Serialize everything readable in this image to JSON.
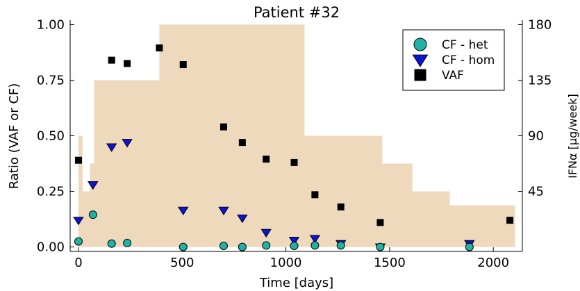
{
  "chart_data": {
    "type": "scatter",
    "title": "Patient #32",
    "xlabel": "Time [days]",
    "ylabel": "Ratio (VAF or CF)",
    "y2label": "IFNα [μg/week]",
    "xlim": [
      -40,
      2140
    ],
    "ylim": [
      -0.02,
      1.02
    ],
    "y2lim": [
      -3.6,
      183.6
    ],
    "grid": false,
    "legend_position": "top-right",
    "x_ticks": [
      0,
      500,
      1000,
      1500,
      2000
    ],
    "x_tick_labels": [
      "0",
      "500",
      "1000",
      "1500",
      "2000"
    ],
    "y_ticks": [
      0,
      0.25,
      0.5,
      0.75,
      1.0
    ],
    "y_tick_labels": [
      "0.00",
      "0.25",
      "0.50",
      "0.75",
      "1.00"
    ],
    "y2_ticks": [
      45,
      90,
      135,
      180
    ],
    "y2_tick_labels": [
      "45",
      "90",
      "135",
      "180"
    ],
    "treatment": {
      "name": "IFNα dose",
      "color": "#EFD9BD",
      "axis": "right",
      "steps": [
        {
          "x": 0,
          "y": 0
        },
        {
          "x": 0,
          "y": 90
        },
        {
          "x": 20,
          "y": 90
        },
        {
          "x": 20,
          "y": 45
        },
        {
          "x": 55,
          "y": 45
        },
        {
          "x": 55,
          "y": 67.5
        },
        {
          "x": 75,
          "y": 67.5
        },
        {
          "x": 75,
          "y": 135
        },
        {
          "x": 390,
          "y": 135
        },
        {
          "x": 390,
          "y": 180
        },
        {
          "x": 1090,
          "y": 180
        },
        {
          "x": 1090,
          "y": 90
        },
        {
          "x": 1465,
          "y": 90
        },
        {
          "x": 1465,
          "y": 67.5
        },
        {
          "x": 1610,
          "y": 67.5
        },
        {
          "x": 1610,
          "y": 45
        },
        {
          "x": 1790,
          "y": 45
        },
        {
          "x": 1790,
          "y": 33.75
        },
        {
          "x": 2105,
          "y": 33.75
        },
        {
          "x": 2105,
          "y": 0
        }
      ]
    },
    "series": [
      {
        "name": "CF - het",
        "marker": "circle",
        "color": "#20B2A4",
        "x": [
          0,
          70,
          160,
          235,
          505,
          700,
          790,
          905,
          1040,
          1140,
          1265,
          1455,
          1885
        ],
        "y": [
          0.025,
          0.145,
          0.015,
          0.018,
          0.0,
          0.005,
          0.0,
          0.007,
          0.005,
          0.007,
          0.007,
          0.0,
          0.0
        ]
      },
      {
        "name": "CF - hom",
        "marker": "triangle-down",
        "color": "#0A14D8",
        "x": [
          0,
          70,
          160,
          235,
          505,
          700,
          790,
          905,
          1040,
          1140,
          1265,
          1455,
          1885
        ],
        "y": [
          0.12,
          0.28,
          0.45,
          0.47,
          0.165,
          0.165,
          0.13,
          0.065,
          0.03,
          0.038,
          0.015,
          0.0,
          0.015
        ]
      },
      {
        "name": "VAF",
        "marker": "square",
        "color": "#000000",
        "x": [
          0,
          160,
          235,
          390,
          505,
          700,
          790,
          905,
          1040,
          1140,
          1265,
          1455,
          2080
        ],
        "y": [
          0.39,
          0.84,
          0.825,
          0.895,
          0.82,
          0.54,
          0.47,
          0.395,
          0.38,
          0.235,
          0.18,
          0.11,
          0.12
        ]
      }
    ]
  }
}
